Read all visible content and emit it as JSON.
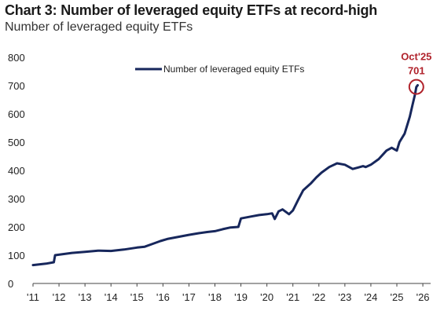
{
  "header": {
    "title": "Chart 3: Number of leveraged equity ETFs at record-high",
    "subtitle": "Number of leveraged equity ETFs"
  },
  "chart_data": {
    "type": "line",
    "xlabel": "",
    "ylabel": "",
    "xlim": [
      2011,
      2026.3
    ],
    "ylim": [
      0,
      800
    ],
    "yticks": [
      0,
      100,
      200,
      300,
      400,
      500,
      600,
      700,
      800
    ],
    "xtick_labels": [
      "'11",
      "'12",
      "'13",
      "'14",
      "'15",
      "'16",
      "'17",
      "'18",
      "'19",
      "'20",
      "'21",
      "'22",
      "'23",
      "'24",
      "'25",
      "'26"
    ],
    "grid": false,
    "legend": "top-center",
    "colors": {
      "line": "#17275c",
      "annotation": "#b0222b"
    },
    "series": [
      {
        "name": "Number of leveraged equity ETFs",
        "x": [
          2011.0,
          2011.5,
          2011.8,
          2011.85,
          2012.5,
          2013.0,
          2013.5,
          2014.0,
          2014.5,
          2015.0,
          2015.3,
          2015.6,
          2015.9,
          2016.2,
          2016.6,
          2017.0,
          2017.4,
          2017.7,
          2018.0,
          2018.3,
          2018.6,
          2018.9,
          2019.0,
          2019.4,
          2019.7,
          2020.0,
          2020.2,
          2020.3,
          2020.45,
          2020.6,
          2020.85,
          2021.0,
          2021.2,
          2021.4,
          2021.7,
          2021.9,
          2022.1,
          2022.4,
          2022.7,
          2023.0,
          2023.3,
          2023.5,
          2023.7,
          2023.8,
          2024.0,
          2024.3,
          2024.6,
          2024.8,
          2025.0,
          2025.1,
          2025.3,
          2025.5,
          2025.6,
          2025.7,
          2025.75,
          2025.8
        ],
        "values": [
          65,
          70,
          75,
          100,
          108,
          112,
          116,
          115,
          120,
          127,
          130,
          140,
          150,
          158,
          165,
          172,
          178,
          182,
          185,
          192,
          198,
          200,
          230,
          237,
          242,
          245,
          248,
          228,
          255,
          262,
          245,
          258,
          295,
          330,
          355,
          375,
          392,
          412,
          425,
          420,
          405,
          410,
          415,
          412,
          420,
          440,
          470,
          480,
          470,
          500,
          530,
          590,
          630,
          670,
          695,
          701
        ]
      }
    ],
    "annotations": [
      {
        "label": "Oct'25",
        "value_label": "701",
        "x": 2025.75,
        "y": 701
      }
    ]
  }
}
